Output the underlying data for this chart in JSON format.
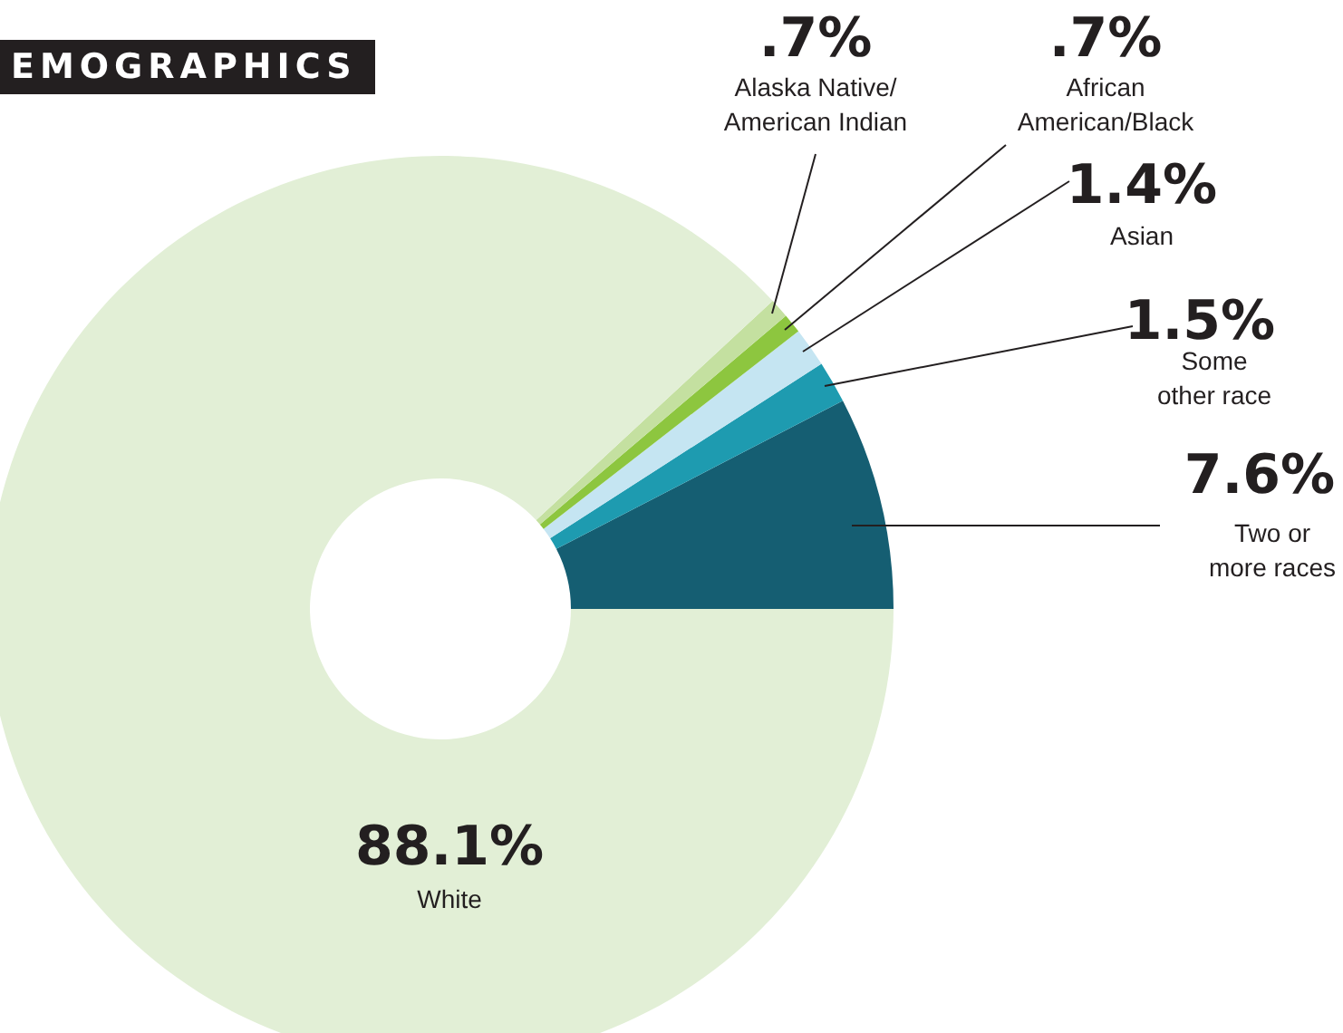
{
  "chart_data": {
    "type": "donut",
    "title": "EMOGRAPHICS",
    "categories": [
      "Two or\nmore races",
      "Some\nother race",
      "Asian",
      "African\nAmerican/Black",
      "Alaska Native/\nAmerican Indian",
      "White"
    ],
    "values": [
      7.6,
      1.5,
      1.4,
      0.7,
      0.7,
      88.1
    ],
    "value_labels": [
      "7.6%",
      "1.5%",
      "1.4%",
      ".7%",
      ".7%",
      "88.1%"
    ],
    "colors": [
      "#155e72",
      "#1e9bb0",
      "#c5e5f2",
      "#8dc63f",
      "#c4e0a0",
      "#e2efd6"
    ],
    "legend": false
  }
}
